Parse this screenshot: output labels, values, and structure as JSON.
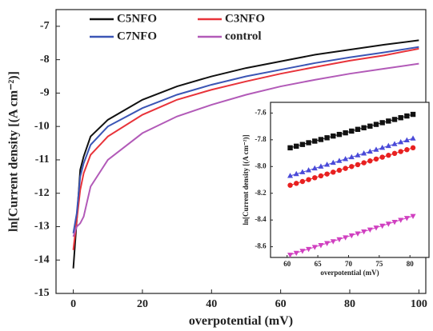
{
  "chart_data": [
    {
      "type": "line",
      "x_label": "overpotential (mV)",
      "y_label": "ln[Current density [(A cm⁻²)]",
      "xlim": [
        -5,
        102
      ],
      "ylim": [
        -15,
        -6.5
      ],
      "xticks": [
        0,
        20,
        40,
        60,
        80,
        100
      ],
      "yticks": [
        -15,
        -14,
        -13,
        -12,
        -11,
        -10,
        -9,
        -8,
        -7
      ],
      "legend": "upper left",
      "x": [
        0,
        1,
        2,
        3,
        5,
        10,
        20,
        30,
        40,
        50,
        60,
        70,
        80,
        90,
        100
      ],
      "series": [
        {
          "name": "C5NFO",
          "color": "#111111",
          "values": [
            -14.25,
            -12.8,
            -11.3,
            -10.9,
            -10.3,
            -9.8,
            -9.2,
            -8.8,
            -8.5,
            -8.25,
            -8.05,
            -7.85,
            -7.7,
            -7.55,
            -7.42
          ]
        },
        {
          "name": "C3NFO",
          "color": "#e8333a",
          "values": [
            -13.7,
            -12.8,
            -11.9,
            -11.4,
            -10.85,
            -10.3,
            -9.65,
            -9.2,
            -8.9,
            -8.65,
            -8.42,
            -8.22,
            -8.03,
            -7.87,
            -7.67
          ]
        },
        {
          "name": "C7NFO",
          "color": "#3b55b5",
          "values": [
            -13.2,
            -12.6,
            -11.5,
            -11.1,
            -10.55,
            -10.0,
            -9.45,
            -9.05,
            -8.75,
            -8.5,
            -8.3,
            -8.1,
            -7.93,
            -7.78,
            -7.62
          ]
        },
        {
          "name": "control",
          "color": "#b25ab8",
          "values": [
            -13.3,
            -13.0,
            -12.9,
            -12.7,
            -11.8,
            -11.0,
            -10.2,
            -9.7,
            -9.35,
            -9.05,
            -8.8,
            -8.6,
            -8.42,
            -8.27,
            -8.12
          ]
        }
      ]
    },
    {
      "type": "line",
      "x_label": "overpotential (mV)",
      "y_label": "ln[Current density [(A cm⁻²)]",
      "xlim": [
        57.3,
        83.1
      ],
      "ylim": [
        -8.68,
        -7.52
      ],
      "xticks": [
        60,
        65,
        70,
        75,
        80
      ],
      "yticks": [
        -8.6,
        -8.4,
        -8.2,
        {
          "value": -8,
          "label": "-8.0"
        },
        -7.8,
        -7.6
      ],
      "x": [
        60.5,
        61.5,
        62.5,
        63.5,
        64.5,
        65.5,
        66.5,
        67.5,
        68.5,
        69.5,
        70.5,
        71.5,
        72.5,
        73.5,
        74.5,
        75.5,
        76.5,
        77.5,
        78.5,
        79.5,
        80.5
      ],
      "series": [
        {
          "color": "#111111",
          "marker": "square",
          "values": [
            -7.86,
            -7.848,
            -7.835,
            -7.822,
            -7.81,
            -7.798,
            -7.785,
            -7.772,
            -7.76,
            -7.748,
            -7.735,
            -7.722,
            -7.71,
            -7.698,
            -7.685,
            -7.672,
            -7.66,
            -7.648,
            -7.635,
            -7.622,
            -7.61
          ]
        },
        {
          "color": "#4a4ad8",
          "marker": "triangle-up",
          "values": [
            -8.07,
            -8.056,
            -8.042,
            -8.028,
            -8.014,
            -8.0,
            -7.986,
            -7.972,
            -7.958,
            -7.944,
            -7.93,
            -7.916,
            -7.902,
            -7.888,
            -7.874,
            -7.86,
            -7.846,
            -7.832,
            -7.818,
            -7.804,
            -7.79
          ]
        },
        {
          "color": "#e82020",
          "marker": "circle",
          "values": [
            -8.14,
            -8.126,
            -8.112,
            -8.098,
            -8.084,
            -8.07,
            -8.056,
            -8.042,
            -8.028,
            -8.014,
            -8.0,
            -7.986,
            -7.972,
            -7.958,
            -7.944,
            -7.93,
            -7.916,
            -7.902,
            -7.888,
            -7.874,
            -7.86
          ]
        },
        {
          "color": "#d040c0",
          "marker": "triangle-down",
          "values": [
            -8.66,
            -8.646,
            -8.631,
            -8.617,
            -8.602,
            -8.588,
            -8.573,
            -8.559,
            -8.544,
            -8.53,
            -8.515,
            -8.501,
            -8.486,
            -8.472,
            -8.457,
            -8.443,
            -8.428,
            -8.414,
            -8.399,
            -8.385,
            -8.37
          ]
        }
      ]
    }
  ]
}
